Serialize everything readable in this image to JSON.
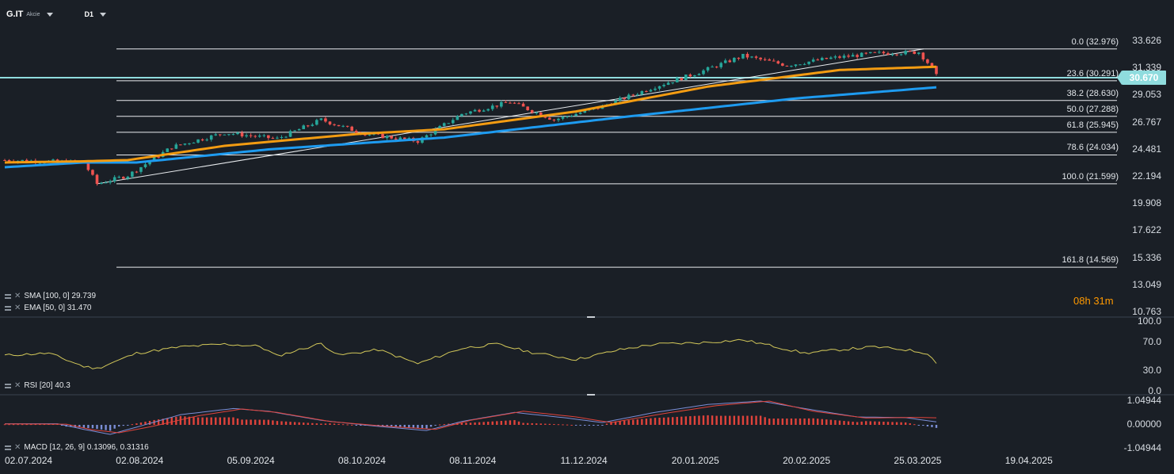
{
  "header": {
    "symbol": "G.IT",
    "symbol_sub": "Akcie",
    "timeframe": "D1"
  },
  "price": {
    "current": "30.670",
    "countdown_h": "08",
    "countdown_h_unit": "h",
    "countdown_m": "31",
    "countdown_m_unit": "m"
  },
  "indicators": {
    "sma": "SMA [100, 0] 29.739",
    "ema": "EMA [50, 0] 31.470",
    "rsi": "RSI [20] 40.3",
    "macd": "MACD [12, 26, 9] 0.13096, 0.31316"
  },
  "colors": {
    "background": "#1a1f26",
    "up": "#26a69a",
    "down": "#ef5350",
    "sma": "#1e9bf0",
    "ema": "#f39c12",
    "rsi": "#d4c95a",
    "macd_line": "#7b8ed6",
    "signal_line": "#e0433b",
    "price_line": "#8fdcde"
  },
  "chart_data": [
    {
      "type": "candlestick",
      "title": "G.IT",
      "price_axis": [
        "33.626",
        "31.339",
        "29.053",
        "26.767",
        "24.481",
        "22.194",
        "19.908",
        "17.622",
        "15.336",
        "13.049",
        "10.763"
      ],
      "x_dates": [
        "02.07.2024",
        "02.08.2024",
        "05.09.2024",
        "08.10.2024",
        "08.11.2024",
        "11.12.2024",
        "20.01.2025",
        "20.02.2025",
        "25.03.2025",
        "19.04.2025"
      ],
      "fibonacci": [
        {
          "label": "0.0 (32.976)",
          "value": 32.976
        },
        {
          "label": "23.6 (30.291)",
          "value": 30.291
        },
        {
          "label": "38.2 (28.630)",
          "value": 28.63
        },
        {
          "label": "50.0 (27.288)",
          "value": 27.288
        },
        {
          "label": "61.8 (25.945)",
          "value": 25.945
        },
        {
          "label": "78.6 (24.034)",
          "value": 24.034
        },
        {
          "label": "100.0 (21.599)",
          "value": 21.599
        },
        {
          "label": "161.8 (14.569)",
          "value": 14.569
        }
      ],
      "close_path": [
        [
          0,
          23.6
        ],
        [
          18,
          23.4
        ],
        [
          21,
          21.6
        ],
        [
          28,
          22.3
        ],
        [
          38,
          24.7
        ],
        [
          50,
          25.9
        ],
        [
          62,
          25.4
        ],
        [
          72,
          27.0
        ],
        [
          82,
          25.8
        ],
        [
          94,
          25.2
        ],
        [
          104,
          27.5
        ],
        [
          115,
          28.5
        ],
        [
          125,
          27.0
        ],
        [
          135,
          28.0
        ],
        [
          148,
          29.8
        ],
        [
          158,
          31.0
        ],
        [
          168,
          32.4
        ],
        [
          178,
          31.6
        ],
        [
          188,
          32.2
        ],
        [
          198,
          32.6
        ],
        [
          208,
          32.7
        ],
        [
          211,
          31.4
        ],
        [
          212,
          30.7
        ]
      ],
      "sma_path": [
        [
          0,
          23.0
        ],
        [
          18,
          23.4
        ],
        [
          30,
          23.4
        ],
        [
          60,
          24.5
        ],
        [
          100,
          25.5
        ],
        [
          140,
          27.2
        ],
        [
          180,
          28.8
        ],
        [
          212,
          29.739
        ]
      ],
      "ema_path": [
        [
          0,
          23.4
        ],
        [
          18,
          23.5
        ],
        [
          28,
          23.6
        ],
        [
          50,
          24.8
        ],
        [
          80,
          25.8
        ],
        [
          100,
          26.2
        ],
        [
          130,
          27.7
        ],
        [
          160,
          29.8
        ],
        [
          190,
          31.2
        ],
        [
          212,
          31.47
        ]
      ],
      "trendline": {
        "from": [
          21,
          21.6
        ],
        "to": [
          208,
          32.976
        ]
      }
    },
    {
      "type": "line",
      "title": "RSI [20]",
      "ylim": [
        0,
        100
      ],
      "ticks": [
        "100.0",
        "70.0",
        "30.0",
        "0.0"
      ],
      "values_path": [
        [
          0,
          52
        ],
        [
          10,
          55
        ],
        [
          18,
          36
        ],
        [
          21,
          33
        ],
        [
          30,
          55
        ],
        [
          40,
          64
        ],
        [
          50,
          68
        ],
        [
          58,
          65
        ],
        [
          62,
          51
        ],
        [
          72,
          69
        ],
        [
          76,
          52
        ],
        [
          85,
          60
        ],
        [
          94,
          40
        ],
        [
          104,
          62
        ],
        [
          112,
          68
        ],
        [
          120,
          56
        ],
        [
          130,
          46
        ],
        [
          140,
          60
        ],
        [
          148,
          68
        ],
        [
          158,
          70
        ],
        [
          168,
          74
        ],
        [
          175,
          65
        ],
        [
          182,
          55
        ],
        [
          190,
          60
        ],
        [
          198,
          64
        ],
        [
          205,
          60
        ],
        [
          210,
          55
        ],
        [
          212,
          40.3
        ]
      ]
    },
    {
      "type": "line",
      "title": "MACD [12, 26, 9]",
      "ticks": [
        "1.04944",
        "0.00000",
        "-1.04944"
      ],
      "macd_path": [
        [
          0,
          0.05
        ],
        [
          12,
          0.05
        ],
        [
          18,
          -0.2
        ],
        [
          24,
          -0.42
        ],
        [
          30,
          -0.1
        ],
        [
          40,
          0.45
        ],
        [
          52,
          0.72
        ],
        [
          60,
          0.6
        ],
        [
          72,
          0.2
        ],
        [
          84,
          -0.05
        ],
        [
          96,
          -0.25
        ],
        [
          104,
          0.15
        ],
        [
          116,
          0.55
        ],
        [
          128,
          0.3
        ],
        [
          136,
          0.1
        ],
        [
          148,
          0.55
        ],
        [
          160,
          0.9
        ],
        [
          172,
          1.05
        ],
        [
          182,
          0.72
        ],
        [
          194,
          0.35
        ],
        [
          205,
          0.32
        ],
        [
          212,
          0.13
        ]
      ],
      "signal_path": [
        [
          0,
          0.04
        ],
        [
          14,
          0.03
        ],
        [
          20,
          -0.22
        ],
        [
          26,
          -0.35
        ],
        [
          34,
          -0.05
        ],
        [
          44,
          0.4
        ],
        [
          54,
          0.7
        ],
        [
          62,
          0.55
        ],
        [
          74,
          0.15
        ],
        [
          86,
          -0.05
        ],
        [
          98,
          -0.2
        ],
        [
          106,
          0.2
        ],
        [
          118,
          0.6
        ],
        [
          130,
          0.35
        ],
        [
          138,
          0.1
        ],
        [
          150,
          0.5
        ],
        [
          162,
          0.85
        ],
        [
          174,
          1.05
        ],
        [
          184,
          0.6
        ],
        [
          196,
          0.3
        ],
        [
          207,
          0.33
        ],
        [
          212,
          0.31
        ]
      ]
    }
  ]
}
